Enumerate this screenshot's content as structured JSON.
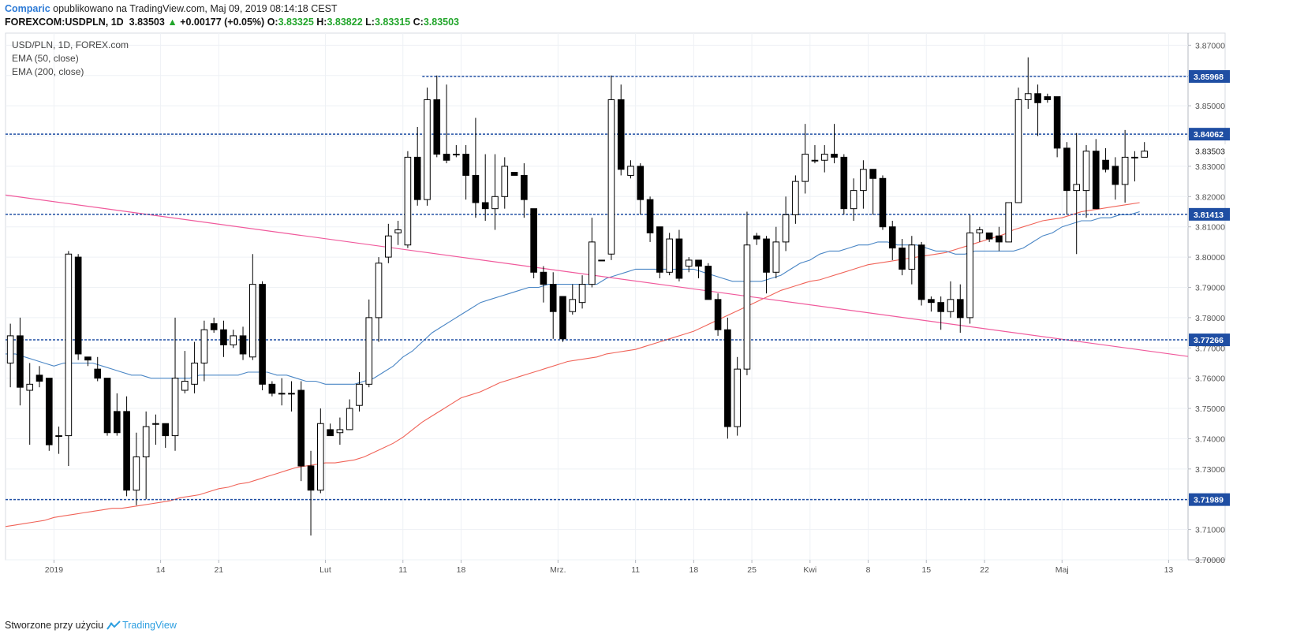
{
  "header": {
    "author": "Comparic",
    "published_text": "opublikowano na TradingView.com, Maj 09, 2019 08:14:18 CEST",
    "symbol_line": "FOREXCOM:USDPLN, 1D",
    "last_price": "3.83503",
    "change_arrow": "▲",
    "change": "+0.00177 (+0.05%)",
    "o_label": "O:",
    "o_value": "3.83325",
    "h_label": "H:",
    "h_value": "3.83822",
    "l_label": "L:",
    "l_value": "3.83315",
    "c_label": "C:",
    "c_value": "3.83503"
  },
  "legend": {
    "symbol": "USD/PLN, 1D, FOREX.com",
    "ema50": "EMA (50, close)",
    "ema200": "EMA (200, close)"
  },
  "footer": {
    "created_with": "Stworzone przy użyciu",
    "brand": "TradingView"
  },
  "colors": {
    "up_body": "#ffffff",
    "down_body": "#000000",
    "ema50": "#4a86c5",
    "ema200": "#f06358",
    "trendline": "#f05a9c",
    "level": "#1f4ea3",
    "grid": "#eef1f5"
  },
  "chart_data": {
    "type": "candlestick",
    "title": "USD/PLN, 1D, FOREX.com",
    "ylim": [
      3.7,
      3.874
    ],
    "y_ticks": [
      "3.87000",
      "3.86000",
      "3.85000",
      "3.84000",
      "3.83000",
      "3.82000",
      "3.81000",
      "3.80000",
      "3.79000",
      "3.78000",
      "3.77000",
      "3.76000",
      "3.75000",
      "3.74000",
      "3.73000",
      "3.72000",
      "3.71000",
      "3.70000"
    ],
    "x_ticks": [
      {
        "label": "2019",
        "bar": 5
      },
      {
        "label": "14",
        "bar": 16
      },
      {
        "label": "21",
        "bar": 22
      },
      {
        "label": "Lut",
        "bar": 33
      },
      {
        "label": "11",
        "bar": 41
      },
      {
        "label": "18",
        "bar": 47
      },
      {
        "label": "Mrz.",
        "bar": 57
      },
      {
        "label": "11",
        "bar": 65
      },
      {
        "label": "18",
        "bar": 71
      },
      {
        "label": "25",
        "bar": 77
      },
      {
        "label": "Kwi",
        "bar": 83
      },
      {
        "label": "8",
        "bar": 89
      },
      {
        "label": "15",
        "bar": 95
      },
      {
        "label": "22",
        "bar": 101
      },
      {
        "label": "Maj",
        "bar": 109
      },
      {
        "label": "13",
        "bar": 120
      }
    ],
    "x_range": [
      0,
      122
    ],
    "price_levels": [
      {
        "value": 3.85968,
        "label": "3.85968",
        "start_bar": 43
      },
      {
        "value": 3.84062,
        "label": "3.84062",
        "start_bar": 0
      },
      {
        "value": 3.81413,
        "label": "3.81413",
        "start_bar": 0
      },
      {
        "value": 3.77266,
        "label": "3.77266",
        "start_bar": 0
      },
      {
        "value": 3.71989,
        "label": "3.71989",
        "start_bar": 0
      }
    ],
    "current_price": {
      "value": 3.83503,
      "label": "3.83503"
    },
    "trendline": {
      "from": [
        0,
        3.8205
      ],
      "to": [
        119,
        3.7685
      ]
    },
    "candles": [
      [
        3.765,
        3.774,
        3.778,
        3.757
      ],
      [
        3.774,
        3.757,
        3.78,
        3.751
      ],
      [
        3.756,
        3.758,
        3.765,
        3.738
      ],
      [
        3.761,
        3.759,
        3.764,
        3.757
      ],
      [
        3.76,
        3.738,
        3.76,
        3.736
      ],
      [
        3.741,
        3.741,
        3.744,
        3.735
      ],
      [
        3.741,
        3.801,
        3.802,
        3.731
      ],
      [
        3.8,
        3.768,
        3.801,
        3.766
      ],
      [
        3.767,
        3.766,
        3.767,
        3.764
      ],
      [
        3.763,
        3.76,
        3.767,
        3.759
      ],
      [
        3.76,
        3.742,
        3.76,
        3.741
      ],
      [
        3.749,
        3.742,
        3.755,
        3.741
      ],
      [
        3.749,
        3.723,
        3.754,
        3.721
      ],
      [
        3.723,
        3.734,
        3.742,
        3.718
      ],
      [
        3.734,
        3.744,
        3.749,
        3.72
      ],
      [
        3.745,
        3.745,
        3.748,
        3.738
      ],
      [
        3.745,
        3.741,
        3.745,
        3.737
      ],
      [
        3.741,
        3.76,
        3.78,
        3.736
      ],
      [
        3.756,
        3.759,
        3.769,
        3.755
      ],
      [
        3.758,
        3.765,
        3.772,
        3.755
      ],
      [
        3.765,
        3.776,
        3.779,
        3.759
      ],
      [
        3.778,
        3.776,
        3.78,
        3.775
      ],
      [
        3.776,
        3.771,
        3.779,
        3.767
      ],
      [
        3.771,
        3.774,
        3.776,
        3.77
      ],
      [
        3.774,
        3.768,
        3.777,
        3.766
      ],
      [
        3.767,
        3.791,
        3.801,
        3.766
      ],
      [
        3.791,
        3.758,
        3.792,
        3.756
      ],
      [
        3.758,
        3.755,
        3.759,
        3.754
      ],
      [
        3.755,
        3.755,
        3.76,
        3.751
      ],
      [
        3.755,
        3.755,
        3.759,
        3.749
      ],
      [
        3.756,
        3.731,
        3.759,
        3.726
      ],
      [
        3.731,
        3.723,
        3.736,
        3.708
      ],
      [
        3.723,
        3.745,
        3.75,
        3.722
      ],
      [
        3.743,
        3.741,
        3.745,
        3.741
      ],
      [
        3.742,
        3.743,
        3.747,
        3.738
      ],
      [
        3.743,
        3.75,
        3.753,
        3.743
      ],
      [
        3.751,
        3.758,
        3.762,
        3.749
      ],
      [
        3.758,
        3.78,
        3.786,
        3.757
      ],
      [
        3.78,
        3.798,
        3.8,
        3.772
      ],
      [
        3.8,
        3.807,
        3.811,
        3.798
      ],
      [
        3.808,
        3.809,
        3.812,
        3.804
      ],
      [
        3.804,
        3.833,
        3.835,
        3.803
      ],
      [
        3.833,
        3.819,
        3.843,
        3.817
      ],
      [
        3.819,
        3.852,
        3.856,
        3.817
      ],
      [
        3.852,
        3.834,
        3.86,
        3.833
      ],
      [
        3.834,
        3.832,
        3.857,
        3.831
      ],
      [
        3.834,
        3.834,
        3.837,
        3.833
      ],
      [
        3.834,
        3.827,
        3.837,
        3.819
      ],
      [
        3.827,
        3.818,
        3.846,
        3.813
      ],
      [
        3.818,
        3.816,
        3.834,
        3.812
      ],
      [
        3.816,
        3.82,
        3.834,
        3.809
      ],
      [
        3.82,
        3.83,
        3.833,
        3.816
      ],
      [
        3.828,
        3.827,
        3.828,
        3.827
      ],
      [
        3.827,
        3.819,
        3.831,
        3.813
      ],
      [
        3.816,
        3.795,
        3.816,
        3.793
      ],
      [
        3.795,
        3.791,
        3.797,
        3.785
      ],
      [
        3.791,
        3.782,
        3.795,
        3.773
      ],
      [
        3.787,
        3.773,
        3.787,
        3.772
      ],
      [
        3.782,
        3.786,
        3.791,
        3.781
      ],
      [
        3.785,
        3.791,
        3.794,
        3.783
      ],
      [
        3.791,
        3.805,
        3.813,
        3.79
      ],
      [
        3.799,
        3.799,
        3.799,
        3.799
      ],
      [
        3.801,
        3.852,
        3.86,
        3.799
      ],
      [
        3.852,
        3.829,
        3.857,
        3.827
      ],
      [
        3.827,
        3.83,
        3.832,
        3.826
      ],
      [
        3.83,
        3.819,
        3.831,
        3.814
      ],
      [
        3.819,
        3.808,
        3.82,
        3.805
      ],
      [
        3.81,
        3.795,
        3.81,
        3.793
      ],
      [
        3.795,
        3.806,
        3.808,
        3.794
      ],
      [
        3.806,
        3.793,
        3.809,
        3.792
      ],
      [
        3.797,
        3.799,
        3.8,
        3.795
      ],
      [
        3.799,
        3.797,
        3.799,
        3.793
      ],
      [
        3.797,
        3.786,
        3.798,
        3.786
      ],
      [
        3.786,
        3.776,
        3.788,
        3.774
      ],
      [
        3.776,
        3.744,
        3.78,
        3.74
      ],
      [
        3.744,
        3.763,
        3.767,
        3.741
      ],
      [
        3.763,
        3.804,
        3.815,
        3.761
      ],
      [
        3.807,
        3.806,
        3.808,
        3.804
      ],
      [
        3.806,
        3.795,
        3.807,
        3.788
      ],
      [
        3.795,
        3.805,
        3.81,
        3.793
      ],
      [
        3.805,
        3.814,
        3.82,
        3.802
      ],
      [
        3.814,
        3.825,
        3.827,
        3.811
      ],
      [
        3.825,
        3.834,
        3.844,
        3.821
      ],
      [
        3.832,
        3.832,
        3.837,
        3.831
      ],
      [
        3.832,
        3.834,
        3.837,
        3.828
      ],
      [
        3.834,
        3.833,
        3.844,
        3.831
      ],
      [
        3.833,
        3.816,
        3.834,
        3.814
      ],
      [
        3.816,
        3.822,
        3.826,
        3.812
      ],
      [
        3.822,
        3.829,
        3.832,
        3.816
      ],
      [
        3.829,
        3.826,
        3.829,
        3.814
      ],
      [
        3.826,
        3.81,
        3.827,
        3.809
      ],
      [
        3.81,
        3.803,
        3.812,
        3.799
      ],
      [
        3.803,
        3.796,
        3.806,
        3.794
      ],
      [
        3.796,
        3.804,
        3.807,
        3.791
      ],
      [
        3.804,
        3.786,
        3.805,
        3.784
      ],
      [
        3.786,
        3.785,
        3.787,
        3.782
      ],
      [
        3.785,
        3.782,
        3.787,
        3.776
      ],
      [
        3.782,
        3.786,
        3.792,
        3.78
      ],
      [
        3.786,
        3.78,
        3.791,
        3.775
      ],
      [
        3.78,
        3.808,
        3.814,
        3.778
      ],
      [
        3.808,
        3.809,
        3.81,
        3.805
      ],
      [
        3.808,
        3.806,
        3.808,
        3.805
      ],
      [
        3.807,
        3.805,
        3.81,
        3.802
      ],
      [
        3.805,
        3.818,
        3.818,
        3.805
      ],
      [
        3.818,
        3.852,
        3.856,
        3.818
      ],
      [
        3.852,
        3.854,
        3.866,
        3.849
      ],
      [
        3.854,
        3.851,
        3.857,
        3.84
      ],
      [
        3.853,
        3.852,
        3.854,
        3.851
      ],
      [
        3.853,
        3.836,
        3.853,
        3.833
      ],
      [
        3.836,
        3.822,
        3.838,
        3.814
      ],
      [
        3.822,
        3.824,
        3.841,
        3.801
      ],
      [
        3.822,
        3.835,
        3.837,
        3.813
      ],
      [
        3.835,
        3.816,
        3.839,
        3.816
      ],
      [
        3.832,
        3.829,
        3.836,
        3.828
      ],
      [
        3.83,
        3.824,
        3.833,
        3.819
      ],
      [
        3.824,
        3.833,
        3.842,
        3.818
      ],
      [
        3.833,
        3.833,
        3.835,
        3.825
      ],
      [
        3.833,
        3.835,
        3.838,
        3.833
      ]
    ],
    "ema50": [
      3.768,
      3.768,
      3.767,
      3.766,
      3.765,
      3.764,
      3.765,
      3.765,
      3.765,
      3.765,
      3.764,
      3.763,
      3.762,
      3.761,
      3.761,
      3.76,
      3.76,
      3.76,
      3.76,
      3.76,
      3.761,
      3.761,
      3.761,
      3.761,
      3.761,
      3.762,
      3.762,
      3.762,
      3.761,
      3.761,
      3.76,
      3.759,
      3.759,
      3.758,
      3.758,
      3.758,
      3.758,
      3.759,
      3.76,
      3.762,
      3.764,
      3.767,
      3.769,
      3.772,
      3.775,
      3.777,
      3.779,
      3.781,
      3.783,
      3.785,
      3.786,
      3.787,
      3.788,
      3.789,
      3.79,
      3.79,
      3.791,
      3.791,
      3.791,
      3.791,
      3.791,
      3.791,
      3.793,
      3.794,
      3.795,
      3.796,
      3.796,
      3.796,
      3.796,
      3.796,
      3.796,
      3.796,
      3.795,
      3.794,
      3.793,
      3.792,
      3.792,
      3.792,
      3.792,
      3.793,
      3.794,
      3.796,
      3.798,
      3.799,
      3.801,
      3.802,
      3.802,
      3.803,
      3.804,
      3.804,
      3.805,
      3.805,
      3.804,
      3.804,
      3.804,
      3.803,
      3.802,
      3.802,
      3.801,
      3.801,
      3.802,
      3.802,
      3.802,
      3.802,
      3.802,
      3.803,
      3.805,
      3.807,
      3.808,
      3.81,
      3.811,
      3.812,
      3.812,
      3.813,
      3.813,
      3.814,
      3.814,
      3.815
    ],
    "ema200": [
      3.711,
      3.7115,
      3.712,
      3.7125,
      3.713,
      3.714,
      3.7145,
      3.715,
      3.7155,
      3.716,
      3.7165,
      3.717,
      3.717,
      3.7175,
      3.718,
      3.7185,
      3.719,
      3.7195,
      3.7205,
      3.721,
      3.7215,
      3.7225,
      3.7235,
      3.724,
      3.725,
      3.7255,
      3.7265,
      3.7275,
      3.7285,
      3.7295,
      3.7305,
      3.731,
      3.7315,
      3.732,
      3.732,
      3.7325,
      3.733,
      3.734,
      3.7355,
      3.737,
      3.7385,
      3.7405,
      3.743,
      3.7455,
      3.7475,
      3.7495,
      3.7515,
      3.7535,
      3.7545,
      3.7555,
      3.757,
      3.7585,
      3.7595,
      3.7605,
      3.7615,
      3.7625,
      3.7635,
      3.7645,
      3.7655,
      3.766,
      3.7665,
      3.767,
      3.768,
      3.7685,
      3.769,
      3.7695,
      3.7705,
      3.7715,
      3.7725,
      3.7735,
      3.7745,
      3.7755,
      3.777,
      3.7785,
      3.78,
      3.7815,
      3.783,
      3.7845,
      3.786,
      3.7875,
      3.789,
      3.79,
      3.791,
      3.792,
      3.7925,
      3.7935,
      3.7945,
      3.7955,
      3.7965,
      3.7975,
      3.798,
      3.7985,
      3.799,
      3.7995,
      3.8,
      3.8005,
      3.801,
      3.8015,
      3.8025,
      3.8035,
      3.8045,
      3.8055,
      3.8065,
      3.8075,
      3.809,
      3.81,
      3.811,
      3.812,
      3.8125,
      3.813,
      3.814,
      3.815,
      3.8155,
      3.816,
      3.8165,
      3.817,
      3.8175,
      3.818
    ]
  }
}
